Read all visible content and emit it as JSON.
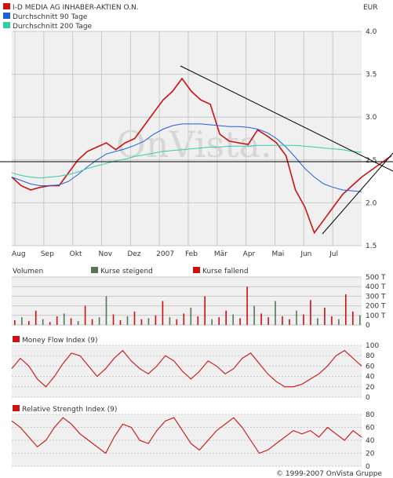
{
  "currency": "EUR",
  "copyright": "© 1999-2007 OnVista Gruppe",
  "watermark": "OnVista.",
  "colors": {
    "price": "#cc1111",
    "avg90": "#1f5fd6",
    "avg200": "#33ccaa",
    "rising": "#557755",
    "falling": "#cc1111",
    "indicator": "#cc1111",
    "grid": "#c8c8c8",
    "panel_bg": "#f0f0f0"
  },
  "chart_data": [
    {
      "type": "line",
      "panel": "price",
      "series": [
        {
          "name": "I-D MEDIA AG INHABER-AKTIEN O.N.",
          "values": [
            2.3,
            2.2,
            2.15,
            2.18,
            2.2,
            2.2,
            2.35,
            2.5,
            2.6,
            2.65,
            2.7,
            2.62,
            2.7,
            2.75,
            2.9,
            3.05,
            3.2,
            3.3,
            3.45,
            3.3,
            3.2,
            3.15,
            2.8,
            2.72,
            2.7,
            2.68,
            2.85,
            2.78,
            2.7,
            2.55,
            2.15,
            1.95,
            1.65,
            1.8,
            1.95,
            2.1,
            2.2,
            2.3
          ]
        },
        {
          "name": "Durchschnitt 90 Tage",
          "values": [
            2.3,
            2.26,
            2.22,
            2.2,
            2.2,
            2.21,
            2.25,
            2.33,
            2.42,
            2.5,
            2.57,
            2.6,
            2.63,
            2.67,
            2.72,
            2.8,
            2.86,
            2.9,
            2.92,
            2.92,
            2.92,
            2.91,
            2.9,
            2.89,
            2.89,
            2.88,
            2.86,
            2.82,
            2.75,
            2.65,
            2.53,
            2.4,
            2.3,
            2.22,
            2.18,
            2.15,
            2.14,
            2.13
          ]
        },
        {
          "name": "Durchschnitt 200 Tage",
          "values": [
            2.35,
            2.32,
            2.3,
            2.29,
            2.3,
            2.31,
            2.33,
            2.36,
            2.4,
            2.43,
            2.46,
            2.49,
            2.51,
            2.54,
            2.56,
            2.58,
            2.6,
            2.61,
            2.62,
            2.63,
            2.64,
            2.65,
            2.65,
            2.66,
            2.66,
            2.66,
            2.67,
            2.67,
            2.67,
            2.67,
            2.67,
            2.66,
            2.65,
            2.64,
            2.63,
            2.62,
            2.6,
            2.59
          ]
        }
      ],
      "x_ticks": [
        "Aug",
        "Sep",
        "Okt",
        "Nov",
        "Dez",
        "2007",
        "Feb",
        "Mär",
        "Apr",
        "Mai",
        "Jun",
        "Jul"
      ],
      "y_ticks": [
        "4.0",
        "3.5",
        "3.0",
        "2.5",
        "2.0",
        "1.5"
      ],
      "ylim": [
        1.5,
        4.0
      ]
    },
    {
      "type": "bar",
      "panel": "volume",
      "title": "Volumen",
      "legend": [
        "Kurse steigend",
        "Kurse fallend"
      ],
      "values": [
        50,
        80,
        40,
        150,
        60,
        30,
        90,
        120,
        70,
        40,
        200,
        60,
        80,
        300,
        110,
        50,
        90,
        140,
        60,
        70,
        100,
        250,
        80,
        60,
        120,
        180,
        90,
        300,
        60,
        80,
        150,
        110,
        70,
        400,
        200,
        120,
        80,
        250,
        90,
        60,
        150,
        110,
        260,
        70,
        180,
        90,
        60,
        320,
        140,
        100
      ],
      "rising": [
        false,
        true,
        false,
        false,
        true,
        false,
        false,
        true,
        false,
        true,
        false,
        false,
        true,
        true,
        false,
        false,
        true,
        false,
        false,
        true,
        false,
        false,
        true,
        false,
        false,
        true,
        false,
        false,
        true,
        false,
        false,
        true,
        false,
        false,
        true,
        false,
        false,
        true,
        false,
        false,
        true,
        false,
        false,
        true,
        false,
        false,
        true,
        false,
        false,
        true
      ],
      "y_ticks": [
        "500 T",
        "400 T",
        "300 T",
        "200 T",
        "100 T",
        "0"
      ],
      "ylim": [
        0,
        500
      ]
    },
    {
      "type": "line",
      "panel": "mfi",
      "title": "Money Flow Index (9)",
      "values": [
        55,
        75,
        60,
        35,
        20,
        40,
        65,
        85,
        80,
        60,
        40,
        55,
        75,
        90,
        70,
        55,
        45,
        60,
        80,
        70,
        50,
        35,
        50,
        70,
        60,
        45,
        55,
        75,
        85,
        65,
        45,
        30,
        20,
        20,
        25,
        35,
        45,
        60,
        80,
        90,
        75,
        60
      ],
      "y_ticks": [
        "100",
        "80",
        "60",
        "40",
        "20",
        "0"
      ],
      "ylim": [
        0,
        100
      ]
    },
    {
      "type": "line",
      "panel": "rsi",
      "title": "Relative Strength Index (9)",
      "values": [
        70,
        60,
        45,
        30,
        40,
        60,
        75,
        65,
        50,
        40,
        30,
        20,
        45,
        65,
        60,
        40,
        35,
        55,
        70,
        75,
        55,
        35,
        25,
        40,
        55,
        65,
        75,
        60,
        40,
        20,
        25,
        35,
        45,
        55,
        50,
        55,
        45,
        60,
        50,
        40,
        55,
        45
      ],
      "y_ticks": [
        "80",
        "60",
        "40",
        "20",
        "0"
      ],
      "ylim": [
        0,
        80
      ]
    }
  ]
}
